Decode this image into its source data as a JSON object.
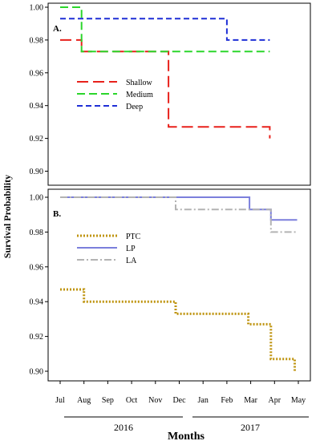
{
  "figure": {
    "ylabel": "Survival Probability",
    "xlabel": "Months",
    "months": [
      "Jul",
      "Aug",
      "Sep",
      "Oct",
      "Nov",
      "Dec",
      "Jan",
      "Feb",
      "Mar",
      "Apr",
      "May"
    ],
    "years": [
      "2016",
      "2017"
    ]
  },
  "chart_data": [
    {
      "type": "line",
      "panel_label": "A.",
      "ylim": [
        0.886,
        1.0
      ],
      "yticks": [
        0.9,
        0.92,
        0.94,
        0.96,
        0.98,
        1.0
      ],
      "ytick_labels": [
        "0.90",
        "0.92",
        "0.94",
        "0.96",
        "0.98",
        "1.00"
      ],
      "grid": false,
      "legend_position": "left",
      "series": [
        {
          "name": "Shallow",
          "color": "#e8211b",
          "x": [
            0,
            0.9,
            0.9,
            4.55,
            4.55,
            8.8,
            8.8
          ],
          "y": [
            0.98,
            0.98,
            0.973,
            0.973,
            0.927,
            0.927,
            0.92
          ]
        },
        {
          "name": "Medium",
          "color": "#2bd62b",
          "x": [
            0,
            0.9,
            0.9,
            8.8
          ],
          "y": [
            1.0,
            1.0,
            0.973,
            0.973
          ]
        },
        {
          "name": "Deep",
          "color": "#1f2fd6",
          "x": [
            0,
            7.0,
            7.0,
            8.8
          ],
          "y": [
            0.993,
            0.993,
            0.98,
            0.98
          ]
        }
      ]
    },
    {
      "type": "line",
      "panel_label": "B.",
      "ylim": [
        0.895,
        1.0
      ],
      "yticks": [
        0.9,
        0.92,
        0.94,
        0.96,
        0.98,
        1.0
      ],
      "ytick_labels": [
        "0.90",
        "0.92",
        "0.94",
        "0.96",
        "0.98",
        "1.00"
      ],
      "grid": false,
      "legend_position": "left",
      "series": [
        {
          "name": "PTC",
          "color": "#bf9410",
          "x": [
            0,
            1.0,
            1.0,
            4.85,
            4.85,
            7.9,
            7.9,
            8.85,
            8.85,
            9.85,
            9.85
          ],
          "y": [
            0.947,
            0.947,
            0.94,
            0.94,
            0.933,
            0.933,
            0.927,
            0.927,
            0.907,
            0.907,
            0.9
          ]
        },
        {
          "name": "LP",
          "color": "#7b7fdc",
          "x": [
            0,
            7.95,
            7.95,
            8.85,
            8.85,
            9.95
          ],
          "y": [
            1.0,
            1.0,
            0.993,
            0.993,
            0.987,
            0.987
          ]
        },
        {
          "name": "LA",
          "color": "#b3b3b3",
          "x": [
            0,
            4.85,
            4.85,
            8.85,
            8.85,
            9.95
          ],
          "y": [
            1.0,
            1.0,
            0.993,
            0.993,
            0.98,
            0.98
          ]
        }
      ]
    }
  ]
}
